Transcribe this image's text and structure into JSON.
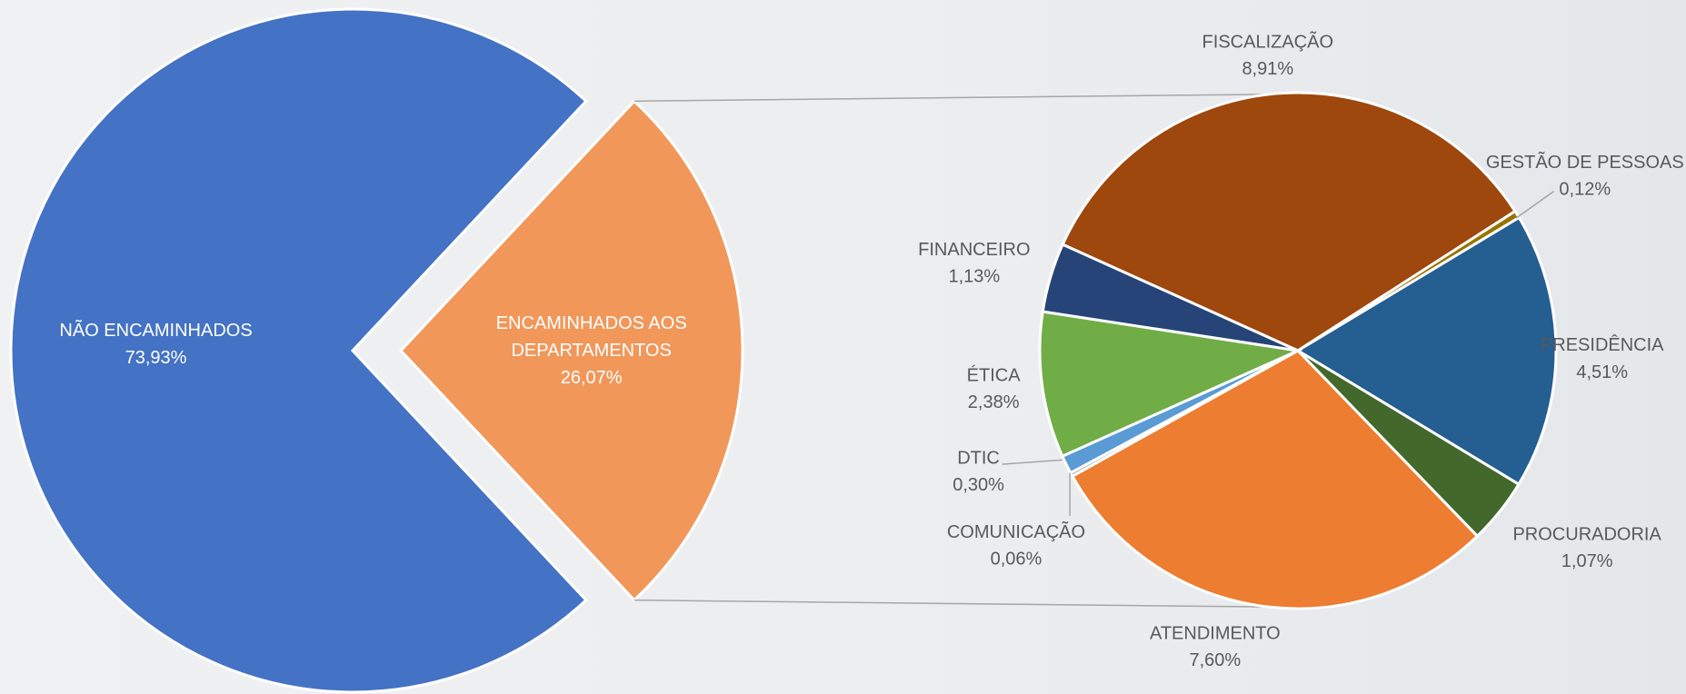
{
  "chart_data": [
    {
      "type": "pie",
      "categories": [
        "NÃO ENCAMINHADOS",
        "ENCAMINHADOS AOS DEPARTAMENTOS"
      ],
      "values": [
        73.93,
        26.07
      ],
      "value_labels": [
        "73,93%",
        "26,07%"
      ],
      "colors": [
        "#4472c4",
        "#f1975a"
      ]
    },
    {
      "type": "pie",
      "categories": [
        "FISCALIZAÇÃO",
        "GESTÃO DE PESSOAS",
        "PRESIDÊNCIA",
        "PROCURADORIA",
        "ATENDIMENTO",
        "COMUNICAÇÃO",
        "DTIC",
        "ÉTICA",
        "FINANCEIRO"
      ],
      "values": [
        8.91,
        0.12,
        4.51,
        1.07,
        7.6,
        0.06,
        0.3,
        2.38,
        1.13
      ],
      "value_labels": [
        "8,91%",
        "0,12%",
        "4,51%",
        "1,07%",
        "7,60%",
        "0,06%",
        "0,30%",
        "2,38%",
        "1,13%"
      ],
      "colors": [
        "#9e480e",
        "#997300",
        "#255e91",
        "#43682b",
        "#ed7d31",
        "#a5a5a5",
        "#5b9bd5",
        "#70ad47",
        "#264478"
      ]
    }
  ]
}
